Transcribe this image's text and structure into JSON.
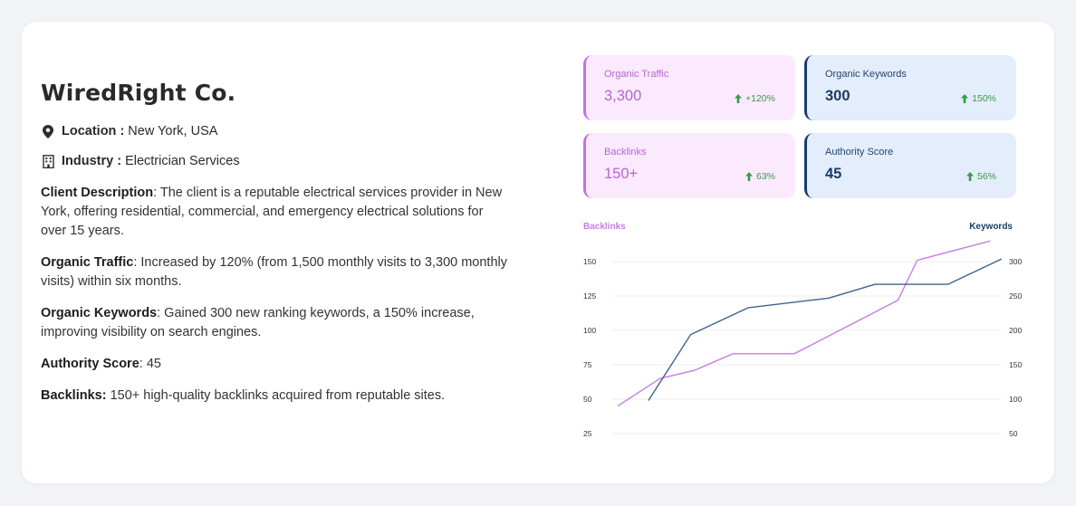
{
  "company": {
    "name": "WiredRight Co.",
    "location_label": "Location :",
    "location_value": "New York, USA",
    "industry_label": "Industry :",
    "industry_value": "Electrician Services"
  },
  "details": [
    {
      "label": "Client Description",
      "sep": ":",
      "text": " The client is a reputable electrical services provider in New York, offering residential, commercial, and emergency electrical solutions for over 15 years."
    },
    {
      "label": "Organic Traffic",
      "sep": ":",
      "text": " Increased by 120% (from 1,500 monthly visits to 3,300 monthly visits) within six months."
    },
    {
      "label": "Organic Keywords",
      "sep": ":",
      "text": " Gained 300 new ranking keywords, a 150% increase, improving visibility on search engines."
    },
    {
      "label": "Authority Score",
      "sep": ":",
      "text": " 45"
    },
    {
      "label": "Backlinks:",
      "sep": "",
      "text": " 150+ high-quality backlinks acquired from reputable sites."
    }
  ],
  "stats": [
    {
      "label": "Organic Traffic",
      "value": "3,300",
      "change": "+120%",
      "theme": "pink"
    },
    {
      "label": "Organic Keywords",
      "value": "300",
      "change": "150%",
      "theme": "blue"
    },
    {
      "label": "Backlinks",
      "value": "150+",
      "change": "63%",
      "theme": "pink"
    },
    {
      "label": "Authority Score",
      "value": "45",
      "change": "56%",
      "theme": "blue"
    }
  ],
  "colors": {
    "pink": "#c97be6",
    "blue": "#3d6390",
    "green": "#3a9a4a",
    "grid": "#ececec"
  },
  "chart_data": {
    "type": "line",
    "left_axis_label": "Backlinks",
    "right_axis_label": "Keywords",
    "left_ticks": [
      25,
      50,
      75,
      100,
      125,
      150
    ],
    "right_ticks": [
      50,
      100,
      150,
      200,
      250,
      300
    ],
    "left_range": [
      25,
      150
    ],
    "right_range": [
      50,
      300
    ],
    "grid": true,
    "series": [
      {
        "name": "Backlinks",
        "axis": "left",
        "color": "#c97be6",
        "points": [
          [
            0.0,
            45
          ],
          [
            0.11,
            65
          ],
          [
            0.2,
            71
          ],
          [
            0.3,
            83
          ],
          [
            0.46,
            83
          ],
          [
            0.73,
            122
          ],
          [
            0.78,
            151
          ],
          [
            0.97,
            165
          ]
        ]
      },
      {
        "name": "Keywords",
        "axis": "right",
        "color": "#3d6390",
        "points": [
          [
            0.08,
            98
          ],
          [
            0.19,
            194
          ],
          [
            0.34,
            233
          ],
          [
            0.55,
            247
          ],
          [
            0.67,
            267
          ],
          [
            0.86,
            267
          ],
          [
            1.0,
            304
          ]
        ]
      }
    ]
  }
}
